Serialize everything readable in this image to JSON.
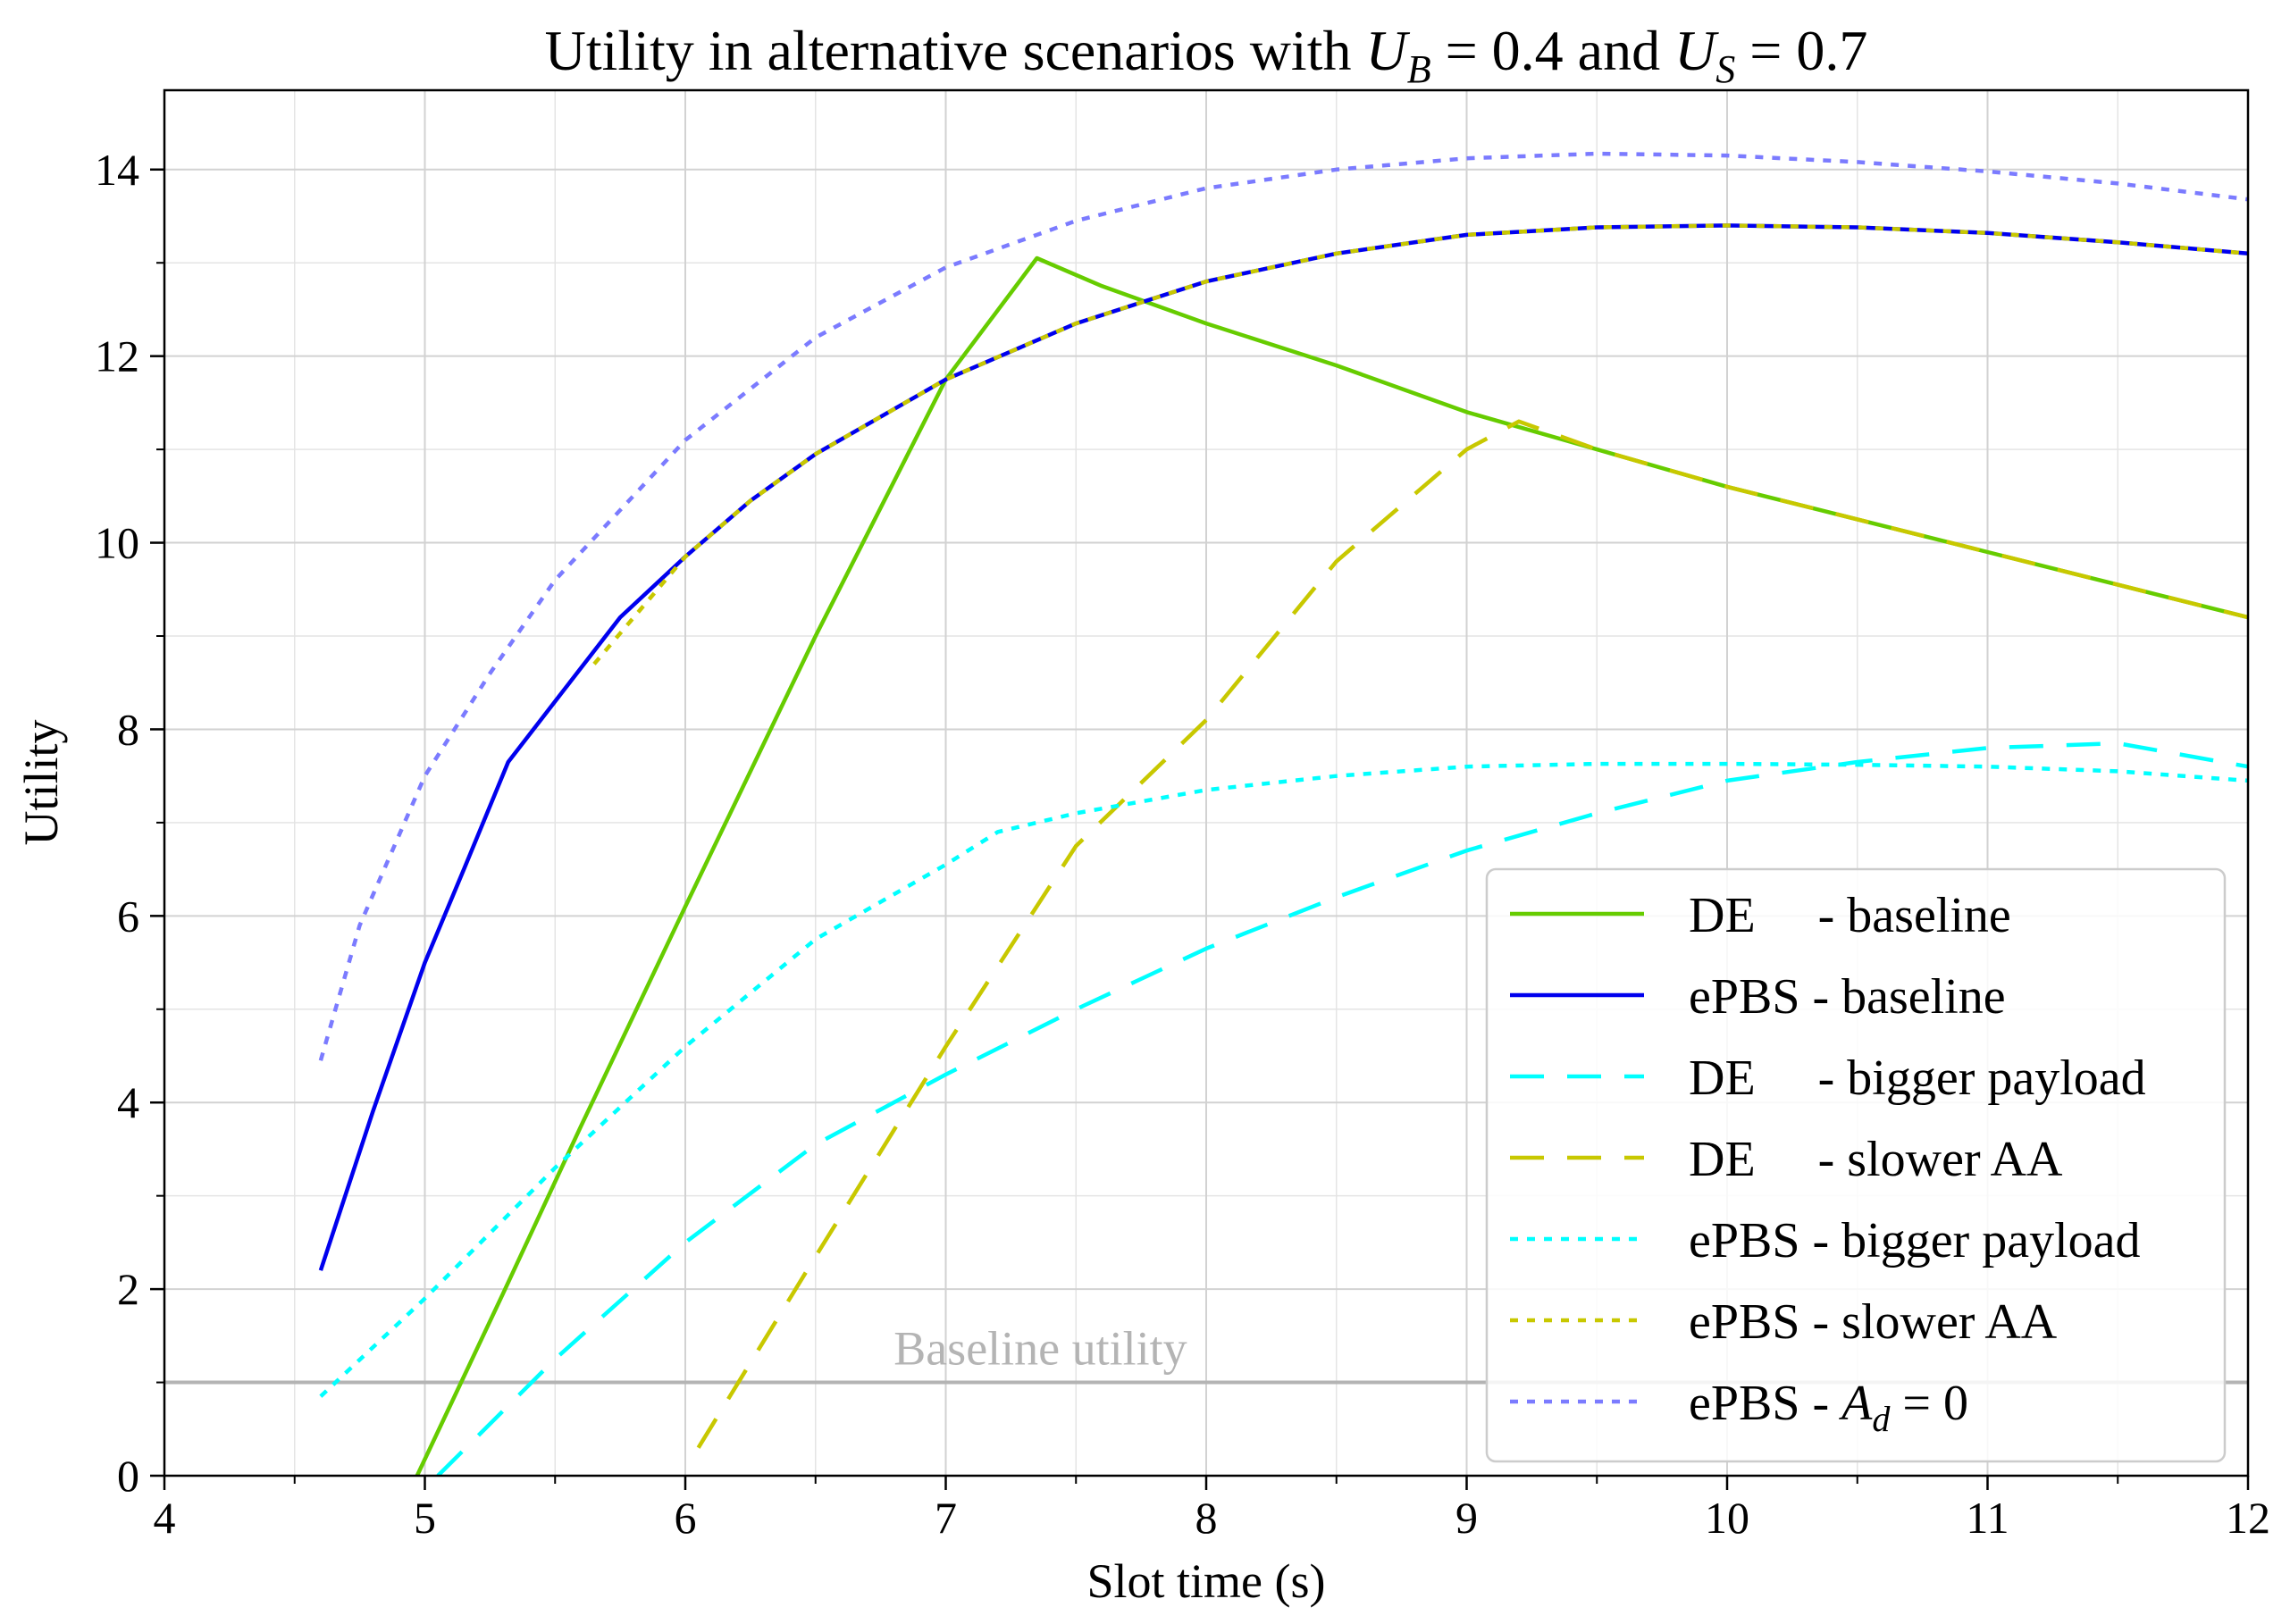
{
  "chart_data": {
    "type": "line",
    "title": {
      "prefix": "Utility in alternative scenarios with ",
      "var1": "U",
      "sub1": "B",
      "eq1": " = 0.4 and ",
      "var2": "U",
      "sub2": "S",
      "eq2": " = 0.7"
    },
    "xlabel": "Slot time (s)",
    "ylabel": "Utility",
    "xlim": [
      4,
      12
    ],
    "ylim": [
      0,
      14.85
    ],
    "xticks": [
      4,
      5,
      6,
      7,
      8,
      9,
      10,
      11,
      12
    ],
    "yticks": [
      0,
      2,
      4,
      6,
      8,
      10,
      12,
      14
    ],
    "grid": true,
    "legend_position": "lower-right",
    "baseline": {
      "value": 1,
      "label": "Baseline utility",
      "color": "#b4b4b4"
    },
    "series": [
      {
        "name": "DE     - baseline",
        "color": "#66cc00",
        "style": "solid",
        "x": [
          4.97,
          5.3,
          5.6,
          6.0,
          6.5,
          7.0,
          7.35,
          7.6,
          8.0,
          8.5,
          9.0,
          9.5,
          10.0,
          10.5,
          11.0,
          11.5,
          12.0
        ],
        "y": [
          0.0,
          1.95,
          3.75,
          6.1,
          9.0,
          11.75,
          13.05,
          12.75,
          12.35,
          11.9,
          11.4,
          11.0,
          10.6,
          10.25,
          9.9,
          9.55,
          9.2
        ]
      },
      {
        "name": "ePBS - baseline",
        "color": "#0000ee",
        "style": "solid",
        "x": [
          4.6,
          4.8,
          5.0,
          5.15,
          5.32,
          5.5,
          5.75,
          6.0,
          6.25,
          6.5,
          7.0,
          7.5,
          8.0,
          8.5,
          9.0,
          9.5,
          10.0,
          10.5,
          11.0,
          11.5,
          12.0
        ],
        "y": [
          2.2,
          3.9,
          5.5,
          6.5,
          7.65,
          8.3,
          9.2,
          9.85,
          10.45,
          10.95,
          11.75,
          12.35,
          12.8,
          13.1,
          13.3,
          13.38,
          13.4,
          13.38,
          13.32,
          13.22,
          13.1
        ]
      },
      {
        "name": "DE     - bigger payload",
        "color": "#00ffff",
        "style": "dashed",
        "x": [
          5.05,
          5.5,
          6.0,
          6.5,
          7.0,
          7.5,
          8.0,
          8.5,
          9.0,
          9.5,
          10.0,
          10.5,
          11.0,
          11.5,
          12.0
        ],
        "y": [
          0.0,
          1.25,
          2.5,
          3.55,
          4.3,
          5.0,
          5.65,
          6.2,
          6.7,
          7.1,
          7.45,
          7.65,
          7.8,
          7.85,
          7.6
        ]
      },
      {
        "name": "DE     - slower AA",
        "color": "#c8c800",
        "style": "dashed",
        "x": [
          6.05,
          6.5,
          7.0,
          7.5,
          8.0,
          8.5,
          9.0,
          9.2,
          9.5,
          10.0,
          10.5,
          11.0,
          11.5,
          12.0
        ],
        "y": [
          0.3,
          2.35,
          4.6,
          6.75,
          8.1,
          9.8,
          11.0,
          11.3,
          11.0,
          10.6,
          10.25,
          9.9,
          9.55,
          9.2
        ]
      },
      {
        "name": "ePBS - bigger payload",
        "color": "#00ffff",
        "style": "dotted",
        "x": [
          4.6,
          5.0,
          5.5,
          6.0,
          6.5,
          7.0,
          7.2,
          7.5,
          8.0,
          8.5,
          9.0,
          9.5,
          10.0,
          10.5,
          11.0,
          11.5,
          12.0
        ],
        "y": [
          0.85,
          1.9,
          3.3,
          4.6,
          5.75,
          6.55,
          6.9,
          7.1,
          7.35,
          7.5,
          7.6,
          7.63,
          7.63,
          7.62,
          7.6,
          7.55,
          7.45
        ]
      },
      {
        "name": "ePBS - slower AA",
        "color": "#c8c800",
        "style": "dotted",
        "x": [
          5.65,
          6.0,
          6.25,
          6.5,
          7.0,
          7.5,
          8.0,
          8.5,
          9.0,
          9.5,
          10.0,
          10.5,
          11.0,
          11.5,
          12.0
        ],
        "y": [
          8.7,
          9.85,
          10.45,
          10.95,
          11.75,
          12.35,
          12.8,
          13.1,
          13.3,
          13.38,
          13.4,
          13.38,
          13.32,
          13.22,
          13.1
        ]
      },
      {
        "name": "ePBS - A_d = 0",
        "legend_parts": {
          "prefix": "ePBS - ",
          "var": "A",
          "sub": "d",
          "suffix": " = 0"
        },
        "color": "#7b7bff",
        "style": "dotted",
        "x": [
          4.6,
          4.75,
          5.0,
          5.25,
          5.5,
          6.0,
          6.5,
          7.0,
          7.5,
          8.0,
          8.5,
          9.0,
          9.5,
          10.0,
          10.5,
          11.0,
          11.5,
          12.0
        ],
        "y": [
          4.45,
          5.9,
          7.5,
          8.6,
          9.6,
          11.1,
          12.2,
          12.95,
          13.45,
          13.8,
          14.0,
          14.12,
          14.17,
          14.15,
          14.08,
          13.98,
          13.85,
          13.68
        ]
      }
    ]
  }
}
